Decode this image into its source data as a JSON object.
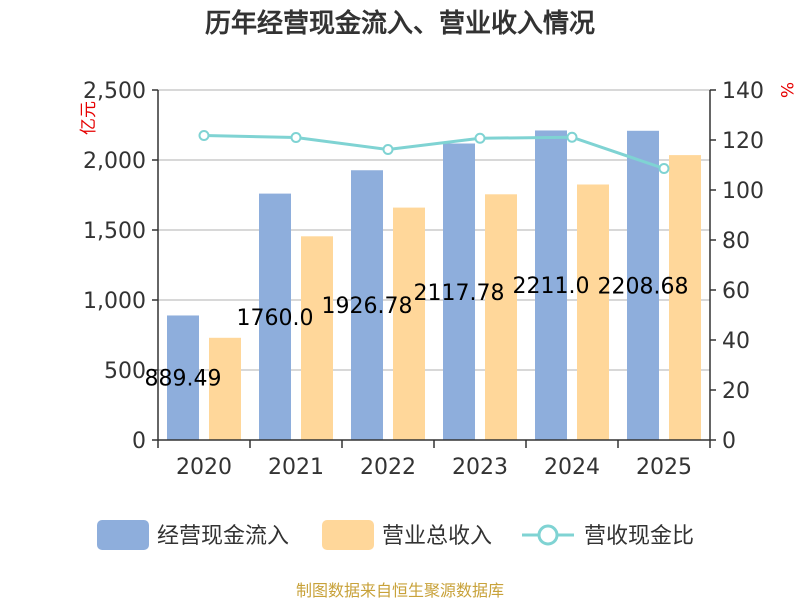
{
  "chart_data": {
    "type": "bar",
    "title": "历年经营现金流入、营业收入情况",
    "categories": [
      "2020",
      "2021",
      "2022",
      "2023",
      "2024",
      "2025"
    ],
    "series": [
      {
        "name": "经营现金流入",
        "values": [
          889.49,
          1760.0,
          1926.78,
          2117.78,
          2211.0,
          2208.68
        ],
        "color": "#8eaedc",
        "axis": "left"
      },
      {
        "name": "营业总收入",
        "values": [
          730,
          1455,
          1660,
          1755,
          1825,
          2035
        ],
        "color": "#ffd79a",
        "axis": "left"
      },
      {
        "name": "营收现金比",
        "type": "line",
        "values": [
          121.8,
          121.0,
          116.2,
          120.7,
          121.1,
          108.6
        ],
        "color": "#7fd3d3",
        "axis": "right"
      }
    ],
    "data_labels": [
      "889.49",
      "1760.0",
      "1926.78",
      "2117.78",
      "2211.0",
      "2208.68"
    ],
    "yleft": {
      "unit": "亿元",
      "ylim": [
        0,
        2500
      ],
      "ticks": [
        "0",
        "500",
        "1,000",
        "1,500",
        "2,000",
        "2,500"
      ]
    },
    "yright": {
      "unit": "%",
      "ylim": [
        0,
        140
      ],
      "ticks": [
        "0",
        "20",
        "40",
        "60",
        "80",
        "100",
        "120",
        "140"
      ]
    },
    "grid": true,
    "legend_position": "bottom"
  },
  "source": "制图数据来自恒生聚源数据库"
}
